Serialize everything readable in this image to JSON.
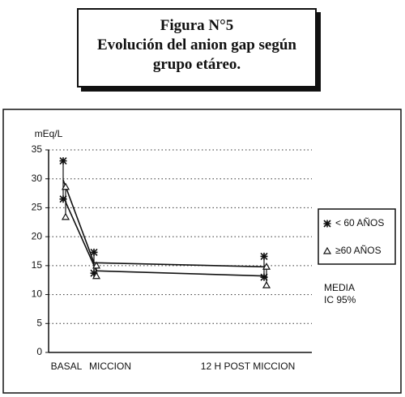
{
  "chart_data": {
    "type": "line",
    "title": "Figura N°5",
    "subtitle": "Evolución del anion gap según grupo etáreo.",
    "ylabel": "mEq/L",
    "categories": [
      "BASAL",
      "MICCION",
      "12 H POST MICCION"
    ],
    "ylim": [
      0,
      35
    ],
    "yticks": [
      0,
      5,
      10,
      15,
      20,
      25,
      30,
      35
    ],
    "grid": true,
    "series": [
      {
        "name": "< 60 AÑOS",
        "marker": "asterisk",
        "color": "#111111",
        "values": [
          29.8,
          15.5,
          14.8
        ],
        "errors": [
          3.3,
          1.8,
          1.8
        ]
      },
      {
        "name": "≥60 AÑOS",
        "marker": "triangle",
        "color": "#111111",
        "values": [
          26,
          14.1,
          13.2
        ],
        "errors": [
          2.6,
          0.9,
          1.6
        ]
      }
    ],
    "annotations": [
      "MEDIA",
      "IC 95%"
    ]
  }
}
